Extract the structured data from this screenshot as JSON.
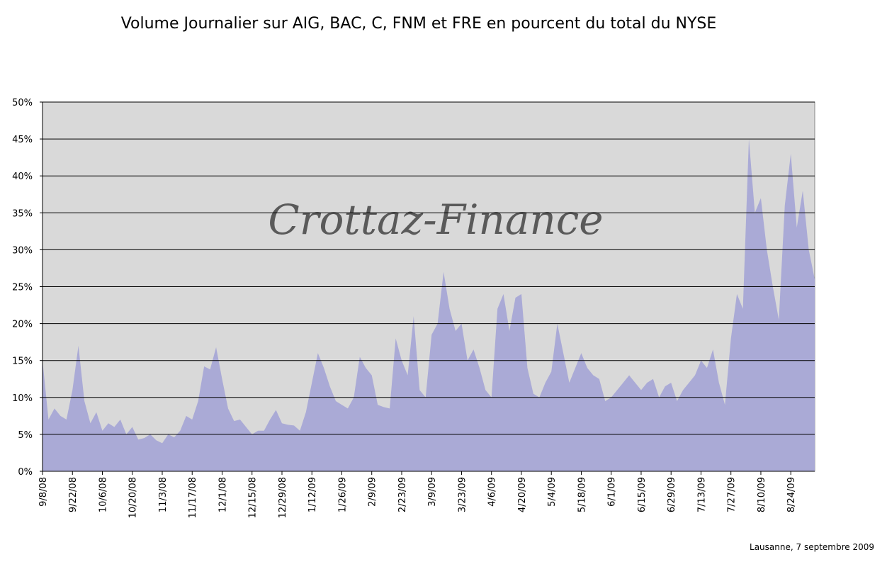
{
  "chart_data": {
    "type": "area",
    "title": "Volume Journalier sur AIG, BAC, C, FNM et FRE  en pourcent du total du NYSE",
    "watermark": "Crottaz-Finance",
    "footnote": "Lausanne, 7 septembre 2009",
    "categories": [
      "9/8/08",
      null,
      null,
      null,
      null,
      "9/22/08",
      null,
      null,
      null,
      null,
      "10/6/08",
      null,
      null,
      null,
      null,
      "10/20/08",
      null,
      null,
      null,
      null,
      "11/3/08",
      null,
      null,
      null,
      null,
      "11/17/08",
      null,
      null,
      null,
      null,
      "12/1/08",
      null,
      null,
      null,
      null,
      "12/15/08",
      null,
      null,
      null,
      null,
      "12/29/08",
      null,
      null,
      null,
      null,
      "1/12/09",
      null,
      null,
      null,
      null,
      "1/26/09",
      null,
      null,
      null,
      null,
      "2/9/09",
      null,
      null,
      null,
      null,
      "2/23/09",
      null,
      null,
      null,
      null,
      "3/9/09",
      null,
      null,
      null,
      null,
      "3/23/09",
      null,
      null,
      null,
      null,
      "4/6/09",
      null,
      null,
      null,
      null,
      "4/20/09",
      null,
      null,
      null,
      null,
      "5/4/09",
      null,
      null,
      null,
      null,
      "5/18/09",
      null,
      null,
      null,
      null,
      "6/1/09",
      null,
      null,
      null,
      null,
      "6/15/09",
      null,
      null,
      null,
      null,
      "6/29/09",
      null,
      null,
      null,
      null,
      "7/13/09",
      null,
      null,
      null,
      null,
      "7/27/09",
      null,
      null,
      null,
      null,
      "8/10/09",
      null,
      null,
      null,
      null,
      "8/24/09",
      null,
      null,
      null,
      null
    ],
    "values": [
      15,
      7,
      8.5,
      7.5,
      7,
      11,
      17,
      9.5,
      6.5,
      8,
      5.5,
      6.5,
      6,
      7,
      5,
      6,
      4.3,
      4.5,
      5,
      4.2,
      3.8,
      5,
      4.6,
      5.5,
      7.5,
      7,
      9.5,
      14.2,
      13.8,
      16.8,
      12.5,
      8.5,
      6.8,
      7,
      6,
      5,
      5.5,
      5.5,
      7,
      8.3,
      6.5,
      6.3,
      6.2,
      5.5,
      8,
      12,
      16,
      14,
      11.5,
      9.5,
      9,
      8.5,
      10,
      15.5,
      14,
      13,
      9,
      8.7,
      8.5,
      18,
      15,
      13,
      21,
      11,
      10,
      18.5,
      20,
      27,
      22,
      19,
      20,
      15,
      16.5,
      14,
      11,
      10,
      22,
      24,
      19,
      23.5,
      24,
      14,
      10.5,
      10,
      12,
      13.5,
      20,
      16,
      12,
      14,
      16,
      14,
      13,
      12.5,
      9.5,
      10,
      11,
      12,
      13,
      12,
      11,
      12,
      12.5,
      10,
      11.5,
      12,
      9.5,
      11,
      12,
      13,
      15,
      14,
      16.5,
      12,
      9,
      18,
      24,
      22,
      45,
      35,
      37,
      30,
      25,
      20.5,
      36,
      43,
      33,
      38,
      30,
      26
    ],
    "color": "#aaaad6",
    "ylim": [
      0,
      50
    ],
    "yticks": [
      {
        "value": 0,
        "label": "0%"
      },
      {
        "value": 5,
        "label": "5%"
      },
      {
        "value": 10,
        "label": "10%"
      },
      {
        "value": 15,
        "label": "15%"
      },
      {
        "value": 20,
        "label": "20%"
      },
      {
        "value": 25,
        "label": "25%"
      },
      {
        "value": 30,
        "label": "30%"
      },
      {
        "value": 35,
        "label": "35%"
      },
      {
        "value": 40,
        "label": "40%"
      },
      {
        "value": 45,
        "label": "45%"
      },
      {
        "value": 50,
        "label": "50%"
      }
    ],
    "grid": true
  }
}
